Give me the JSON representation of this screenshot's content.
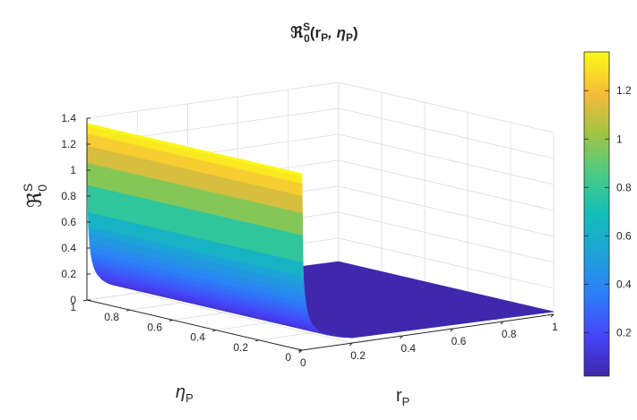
{
  "chart_data": {
    "type": "surface",
    "title": {
      "main": "ℜ",
      "sup": "S",
      "sub": "0",
      "args": "(r",
      "args_sub1": "P",
      "args_mid": ",  η",
      "args_sub2": "P",
      "args_end": ")"
    },
    "xlabel": {
      "main": "r",
      "sub": "P"
    },
    "ylabel": {
      "main": "η",
      "sub": "P"
    },
    "zlabel": {
      "main": "ℜ",
      "sup": "S",
      "sub": "0"
    },
    "xlim": [
      0,
      1
    ],
    "ylim": [
      0,
      1
    ],
    "zlim": [
      0,
      1.4
    ],
    "x_ticks": [
      "0",
      "0.2",
      "0.4",
      "0.6",
      "0.8",
      "1"
    ],
    "y_ticks": [
      "0",
      "0.2",
      "0.4",
      "0.6",
      "0.8",
      "1"
    ],
    "z_ticks": [
      "0",
      "0.2",
      "0.4",
      "0.6",
      "0.8",
      "1",
      "1.2",
      "1.4"
    ],
    "colorbar": {
      "range": [
        0.02,
        1.36
      ],
      "ticks": [
        "0.2",
        "0.4",
        "0.6",
        "0.8",
        "1",
        "1.2"
      ],
      "colormap": "parula"
    },
    "surface_profile": {
      "description_of_values": "value of the surface vs r_P (constant along eta_P)",
      "r": [
        0.0,
        0.005,
        0.01,
        0.015,
        0.02,
        0.03,
        0.04,
        0.06,
        0.08,
        0.1,
        0.15,
        0.2,
        0.3,
        1.0
      ],
      "z": [
        1.36,
        0.6,
        0.45,
        0.36,
        0.3,
        0.23,
        0.19,
        0.14,
        0.11,
        0.09,
        0.06,
        0.04,
        0.03,
        0.02
      ]
    },
    "grid": true
  }
}
